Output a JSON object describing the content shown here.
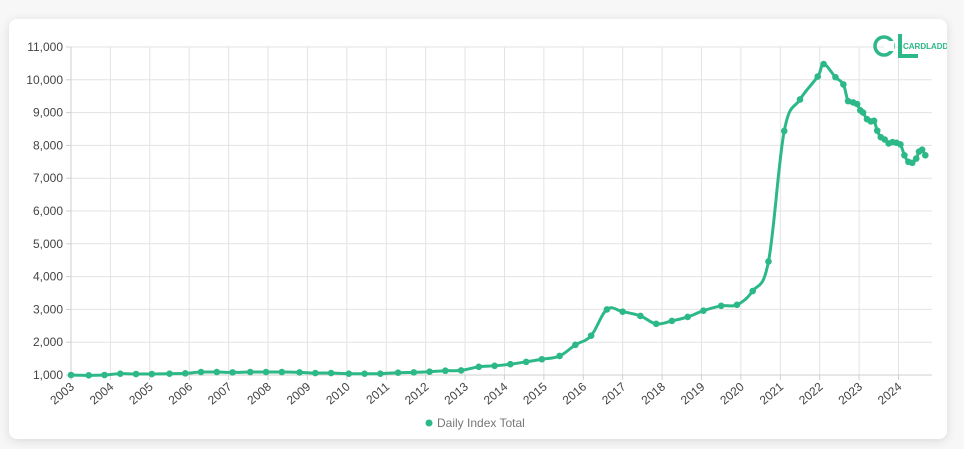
{
  "brand": {
    "logo_text": "CARDLADDER",
    "color": "#2db887"
  },
  "legend": {
    "label": "Daily Index Total"
  },
  "chart_data": {
    "type": "line",
    "title": "",
    "xlabel": "",
    "ylabel": "",
    "ylim": [
      1000,
      11000
    ],
    "xlim": [
      2003.0,
      2024.85
    ],
    "y_ticks": [
      "1,000",
      "2,000",
      "3,000",
      "4,000",
      "5,000",
      "6,000",
      "7,000",
      "8,000",
      "9,000",
      "10,000",
      "11,000"
    ],
    "x_ticks": [
      "2003",
      "2004",
      "2005",
      "2006",
      "2007",
      "2008",
      "2009",
      "2010",
      "2011",
      "2012",
      "2013",
      "2014",
      "2015",
      "2016",
      "2017",
      "2018",
      "2019",
      "2020",
      "2021",
      "2022",
      "2023",
      "2024"
    ],
    "grid": true,
    "legend_position": "bottom",
    "series": [
      {
        "name": "Daily Index Total",
        "color": "#2db887",
        "points": [
          [
            2003.0,
            1000
          ],
          [
            2003.45,
            990
          ],
          [
            2003.85,
            1000
          ],
          [
            2004.25,
            1040
          ],
          [
            2004.65,
            1030
          ],
          [
            2005.05,
            1030
          ],
          [
            2005.5,
            1040
          ],
          [
            2005.9,
            1050
          ],
          [
            2006.3,
            1090
          ],
          [
            2006.7,
            1090
          ],
          [
            2007.1,
            1080
          ],
          [
            2007.55,
            1090
          ],
          [
            2007.95,
            1090
          ],
          [
            2008.35,
            1090
          ],
          [
            2008.8,
            1080
          ],
          [
            2009.2,
            1060
          ],
          [
            2009.6,
            1060
          ],
          [
            2010.05,
            1040
          ],
          [
            2010.45,
            1040
          ],
          [
            2010.85,
            1040
          ],
          [
            2011.3,
            1070
          ],
          [
            2011.7,
            1080
          ],
          [
            2012.1,
            1100
          ],
          [
            2012.5,
            1130
          ],
          [
            2012.9,
            1140
          ],
          [
            2013.35,
            1250
          ],
          [
            2013.75,
            1280
          ],
          [
            2014.15,
            1330
          ],
          [
            2014.55,
            1400
          ],
          [
            2014.95,
            1480
          ],
          [
            2015.4,
            1580
          ],
          [
            2015.8,
            1920
          ],
          [
            2016.2,
            2200
          ],
          [
            2016.6,
            3000
          ],
          [
            2017.0,
            2930
          ],
          [
            2017.45,
            2800
          ],
          [
            2017.85,
            2560
          ],
          [
            2018.25,
            2650
          ],
          [
            2018.65,
            2770
          ],
          [
            2019.05,
            2960
          ],
          [
            2019.5,
            3110
          ],
          [
            2019.9,
            3140
          ],
          [
            2020.3,
            3560
          ],
          [
            2020.7,
            4460
          ],
          [
            2021.1,
            8440
          ],
          [
            2021.5,
            9400
          ],
          [
            2021.95,
            10100
          ],
          [
            2022.1,
            10480
          ],
          [
            2022.4,
            10080
          ],
          [
            2022.6,
            9860
          ],
          [
            2022.72,
            9350
          ],
          [
            2022.85,
            9310
          ],
          [
            2022.95,
            9260
          ],
          [
            2023.03,
            9070
          ],
          [
            2023.1,
            9000
          ],
          [
            2023.2,
            8800
          ],
          [
            2023.3,
            8730
          ],
          [
            2023.38,
            8750
          ],
          [
            2023.46,
            8450
          ],
          [
            2023.55,
            8250
          ],
          [
            2023.65,
            8180
          ],
          [
            2023.75,
            8060
          ],
          [
            2023.85,
            8100
          ],
          [
            2023.95,
            8080
          ],
          [
            2024.05,
            8030
          ],
          [
            2024.15,
            7700
          ],
          [
            2024.25,
            7500
          ],
          [
            2024.35,
            7470
          ],
          [
            2024.45,
            7600
          ],
          [
            2024.52,
            7810
          ],
          [
            2024.6,
            7870
          ],
          [
            2024.68,
            7700
          ]
        ]
      }
    ]
  }
}
